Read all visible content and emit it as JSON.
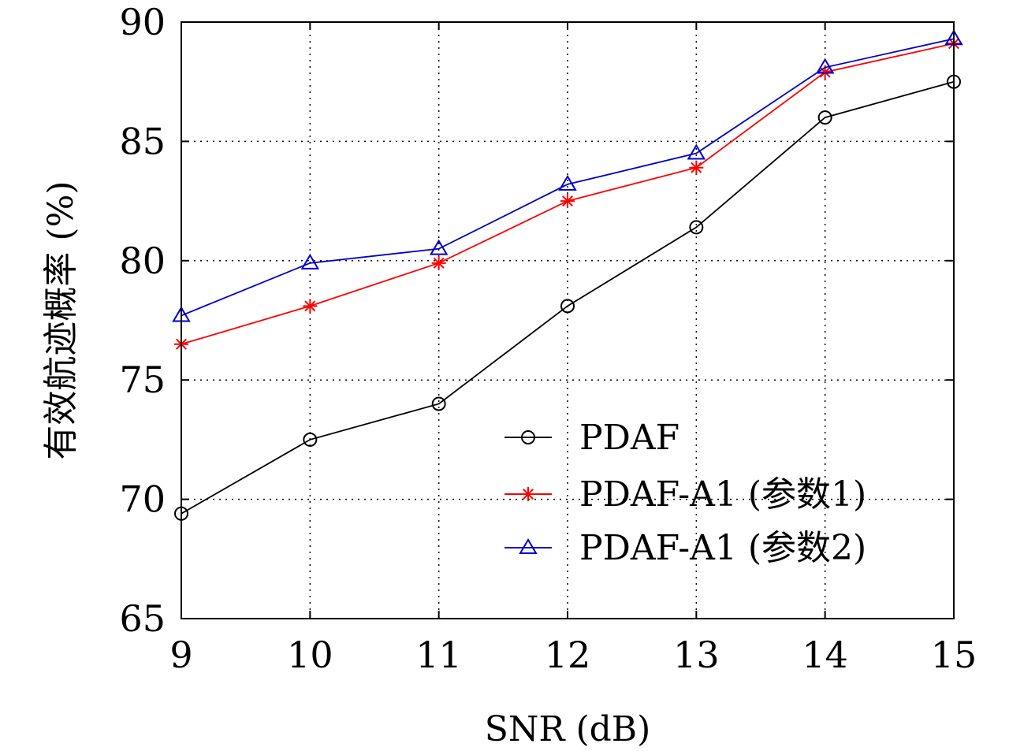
{
  "chart_data": {
    "type": "line",
    "title": "",
    "xlabel": "SNR (dB)",
    "ylabel": "有效航迹概率 (%)",
    "x": [
      9,
      10,
      11,
      12,
      13,
      14,
      15
    ],
    "xlim": [
      9,
      15
    ],
    "ylim": [
      65,
      90
    ],
    "xticks": [
      "9",
      "10",
      "11",
      "12",
      "13",
      "14",
      "15"
    ],
    "yticks": [
      "65",
      "70",
      "75",
      "80",
      "85",
      "90"
    ],
    "grid": true,
    "legend_position": "lower-right",
    "series": [
      {
        "name": "PDAF",
        "color": "#000000",
        "marker": "circle",
        "values": [
          69.4,
          72.5,
          74.0,
          78.1,
          81.4,
          86.0,
          87.5
        ]
      },
      {
        "name": "PDAF-A1 (参数1)",
        "color": "#ff0000",
        "marker": "star",
        "values": [
          76.5,
          78.1,
          79.9,
          82.5,
          83.9,
          87.9,
          89.1
        ]
      },
      {
        "name": "PDAF-A1 (参数2)",
        "color": "#0000cc",
        "marker": "triangle",
        "values": [
          77.7,
          79.9,
          80.5,
          83.2,
          84.5,
          88.1,
          89.3
        ]
      }
    ]
  }
}
